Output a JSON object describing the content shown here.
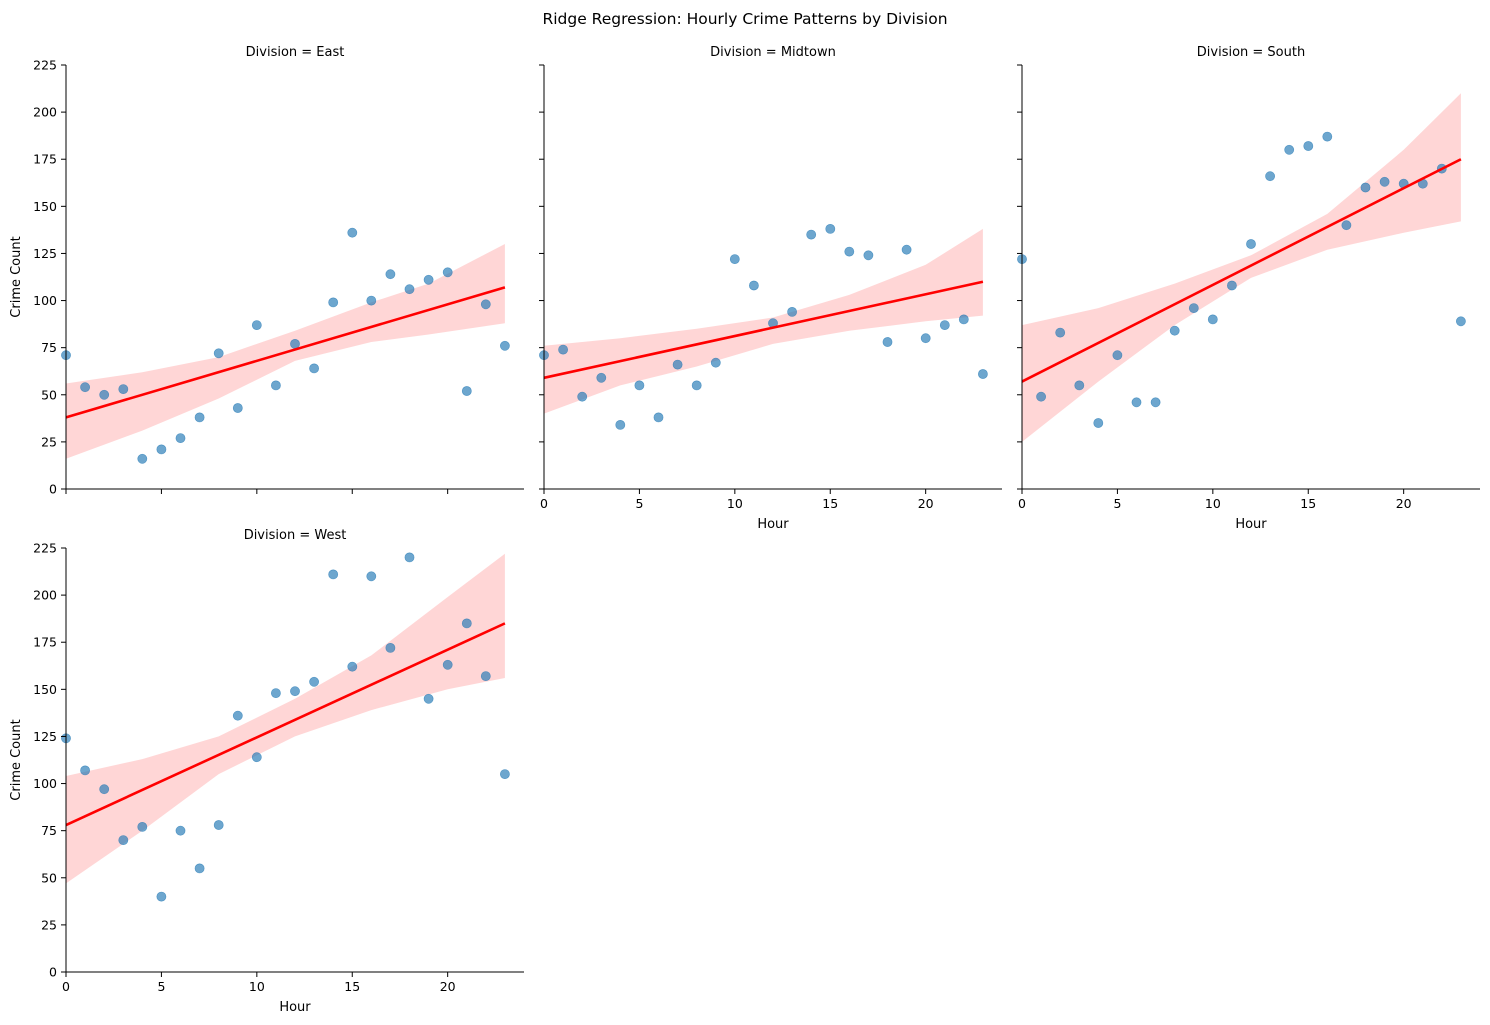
{
  "chart_data": {
    "type": "scatter",
    "title": "Ridge Regression: Hourly Crime Patterns by Division",
    "xlabel": "Hour",
    "ylabel": "Crime Count",
    "xlim": [
      0,
      24
    ],
    "ylim": [
      0,
      225
    ],
    "xticks": [
      0,
      5,
      10,
      15,
      20
    ],
    "yticks": [
      0,
      25,
      50,
      75,
      100,
      125,
      150,
      175,
      200,
      225
    ],
    "grid": false,
    "colors": {
      "points": "#1f77b4",
      "line": "#ff0000",
      "band": "#ff9999"
    },
    "panels": [
      {
        "title": "Division = East",
        "x": [
          0,
          1,
          2,
          3,
          4,
          5,
          6,
          7,
          8,
          9,
          10,
          11,
          12,
          13,
          14,
          15,
          16,
          17,
          18,
          19,
          20,
          21,
          22,
          23
        ],
        "y": [
          71,
          54,
          50,
          53,
          16,
          21,
          27,
          38,
          72,
          43,
          87,
          55,
          77,
          64,
          99,
          136,
          100,
          114,
          106,
          111,
          115,
          52,
          98,
          76
        ],
        "fit": {
          "x0": 0,
          "y0": 38,
          "x1": 23,
          "y1": 107
        },
        "ci_lower": {
          "x": [
            0,
            4,
            8,
            12,
            16,
            19,
            23
          ],
          "y": [
            16,
            31,
            48,
            68,
            78,
            82,
            88
          ]
        },
        "ci_upper": {
          "x": [
            0,
            4,
            8,
            12,
            16,
            19,
            23
          ],
          "y": [
            56,
            62,
            70,
            84,
            99,
            109,
            130
          ]
        }
      },
      {
        "title": "Division = Midtown",
        "x": [
          0,
          1,
          2,
          3,
          4,
          5,
          6,
          7,
          8,
          9,
          10,
          11,
          12,
          13,
          14,
          15,
          16,
          17,
          18,
          19,
          20,
          21,
          22,
          23
        ],
        "y": [
          71,
          74,
          49,
          59,
          34,
          55,
          38,
          66,
          55,
          67,
          122,
          108,
          88,
          94,
          135,
          138,
          126,
          124,
          78,
          127,
          80,
          87,
          90,
          61
        ],
        "fit": {
          "x0": 0,
          "y0": 59,
          "x1": 23,
          "y1": 110
        },
        "ci_lower": {
          "x": [
            0,
            4,
            8,
            12,
            16,
            20,
            23
          ],
          "y": [
            40,
            55,
            65,
            77,
            84,
            89,
            92
          ]
        },
        "ci_upper": {
          "x": [
            0,
            4,
            8,
            12,
            16,
            20,
            23
          ],
          "y": [
            76,
            80,
            85,
            91,
            103,
            119,
            138
          ]
        }
      },
      {
        "title": "Division = South",
        "x": [
          0,
          1,
          2,
          3,
          4,
          5,
          6,
          7,
          8,
          9,
          10,
          11,
          12,
          13,
          14,
          15,
          16,
          17,
          18,
          19,
          20,
          21,
          22,
          23
        ],
        "y": [
          122,
          49,
          83,
          55,
          35,
          71,
          46,
          46,
          84,
          96,
          90,
          108,
          130,
          166,
          180,
          182,
          187,
          140,
          160,
          163,
          162,
          162,
          170,
          89
        ],
        "fit": {
          "x0": 0,
          "y0": 57,
          "x1": 23,
          "y1": 175
        },
        "ci_lower": {
          "x": [
            0,
            4,
            8,
            12,
            16,
            20,
            23
          ],
          "y": [
            25,
            57,
            87,
            112,
            127,
            136,
            142
          ]
        },
        "ci_upper": {
          "x": [
            0,
            4,
            8,
            12,
            16,
            20,
            23
          ],
          "y": [
            87,
            96,
            109,
            124,
            146,
            180,
            210
          ]
        }
      },
      {
        "title": "Division = West",
        "x": [
          0,
          1,
          2,
          3,
          4,
          5,
          6,
          7,
          8,
          9,
          10,
          11,
          12,
          13,
          14,
          15,
          16,
          17,
          18,
          19,
          20,
          21,
          22,
          23
        ],
        "y": [
          124,
          107,
          97,
          70,
          77,
          40,
          75,
          55,
          78,
          136,
          114,
          148,
          149,
          154,
          211,
          162,
          210,
          172,
          220,
          145,
          163,
          185,
          157,
          105
        ],
        "fit": {
          "x0": 0,
          "y0": 78,
          "x1": 23,
          "y1": 185
        },
        "ci_lower": {
          "x": [
            0,
            4,
            8,
            12,
            16,
            20,
            23
          ],
          "y": [
            47,
            75,
            105,
            125,
            139,
            150,
            156
          ]
        },
        "ci_upper": {
          "x": [
            0,
            4,
            8,
            12,
            16,
            20,
            23
          ],
          "y": [
            104,
            113,
            125,
            145,
            168,
            199,
            222
          ]
        }
      }
    ]
  }
}
